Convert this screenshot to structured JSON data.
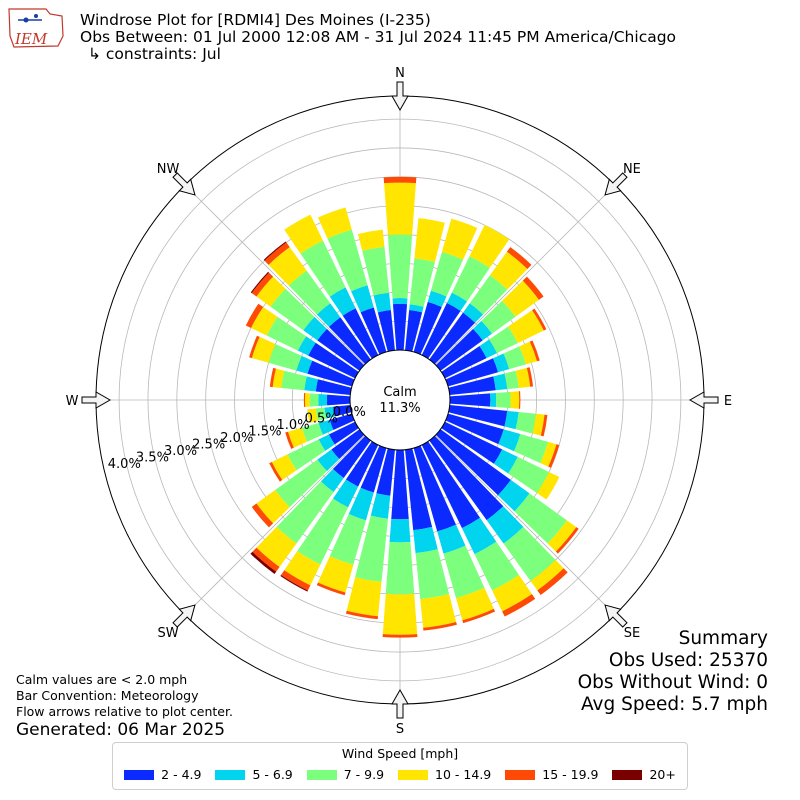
{
  "header": {
    "title": "Windrose Plot for [RDMI4] Des Moines (I-235)",
    "obs_between": "Obs Between: 01 Jul 2000 12:08 AM - 31 Jul 2024 11:45 PM America/Chicago",
    "constraints": "↳ constraints: Jul"
  },
  "logo": {
    "text": "IEM"
  },
  "notes": {
    "calm_def": "Calm values are < 2.0 mph",
    "bar_convention": "Bar Convention: Meteorology",
    "flow_arrows": "Flow arrows relative to plot center.",
    "generated": "Generated: 06 Mar 2025"
  },
  "summary": {
    "heading": "Summary",
    "obs_used": "Obs Used: 25370",
    "obs_without_wind": "Obs Without Wind: 0",
    "avg_speed": "Avg Speed: 5.7 mph"
  },
  "legend": {
    "title": "Wind Speed [mph]",
    "items": [
      {
        "label": "2 - 4.9",
        "color": "#0a2aff"
      },
      {
        "label": "5 - 6.9",
        "color": "#00d4ee"
      },
      {
        "label": "7 - 9.9",
        "color": "#7cff7c"
      },
      {
        "label": "10 - 14.9",
        "color": "#ffe500"
      },
      {
        "label": "15 - 19.9",
        "color": "#ff4a05"
      },
      {
        "label": "20+",
        "color": "#7a0000"
      }
    ]
  },
  "chart_data": {
    "type": "windrose",
    "calm": {
      "label": "Calm",
      "value": "11.3%"
    },
    "compass_labels": [
      "N",
      "NE",
      "E",
      "SE",
      "S",
      "SW",
      "W",
      "NW"
    ],
    "radial_ticks": [
      "0.0%",
      "0.5%",
      "1.0%",
      "1.5%",
      "2.0%",
      "2.5%",
      "3.0%",
      "3.5%",
      "4.0%"
    ],
    "radial_max_pct": 4.4,
    "bin_colors": [
      "#0a2aff",
      "#00d4ee",
      "#7cff7c",
      "#ffe500",
      "#ff4a05",
      "#7a0000"
    ],
    "directions_deg": [
      0,
      10,
      20,
      30,
      40,
      50,
      60,
      70,
      80,
      90,
      100,
      110,
      120,
      130,
      140,
      150,
      160,
      170,
      180,
      190,
      200,
      210,
      220,
      230,
      240,
      250,
      260,
      270,
      280,
      290,
      300,
      310,
      320,
      330,
      340,
      350
    ],
    "cumulative_pct": [
      [
        0.8,
        0.9,
        2.0,
        2.9,
        3.0,
        3.0
      ],
      [
        0.7,
        0.8,
        1.6,
        2.3,
        2.3,
        2.3
      ],
      [
        0.9,
        1.1,
        1.8,
        2.4,
        2.4,
        2.4
      ],
      [
        1.0,
        1.2,
        1.9,
        2.5,
        2.5,
        2.5
      ],
      [
        1.0,
        1.2,
        1.8,
        2.3,
        2.4,
        2.4
      ],
      [
        0.9,
        1.1,
        1.6,
        2.1,
        2.2,
        2.2
      ],
      [
        0.8,
        1.0,
        1.4,
        1.9,
        1.95,
        1.95
      ],
      [
        0.9,
        1.1,
        1.4,
        1.6,
        1.65,
        1.65
      ],
      [
        0.8,
        1.0,
        1.2,
        1.4,
        1.45,
        1.45
      ],
      [
        0.7,
        0.8,
        1.05,
        1.2,
        1.22,
        1.22
      ],
      [
        1.0,
        1.2,
        1.5,
        1.65,
        1.7,
        1.7
      ],
      [
        1.0,
        1.3,
        1.8,
        1.95,
        2.0,
        2.0
      ],
      [
        1.1,
        1.4,
        2.0,
        2.2,
        2.2,
        2.2
      ],
      [
        1.5,
        1.9,
        2.7,
        2.9,
        2.95,
        2.95
      ],
      [
        1.7,
        2.2,
        3.0,
        3.2,
        3.3,
        3.3
      ],
      [
        1.6,
        2.1,
        2.8,
        3.2,
        3.3,
        3.3
      ],
      [
        1.5,
        1.9,
        2.7,
        3.1,
        3.15,
        3.15
      ],
      [
        1.4,
        1.8,
        2.6,
        3.1,
        3.15,
        3.15
      ],
      [
        1.2,
        1.6,
        2.5,
        3.2,
        3.25,
        3.25
      ],
      [
        0.8,
        1.2,
        2.3,
        2.9,
        2.95,
        2.95
      ],
      [
        0.8,
        1.3,
        2.1,
        2.6,
        2.65,
        2.65
      ],
      [
        0.8,
        1.2,
        2.3,
        2.7,
        2.8,
        2.82
      ],
      [
        0.8,
        1.1,
        2.2,
        2.7,
        2.8,
        2.85
      ],
      [
        0.6,
        0.9,
        1.8,
        2.2,
        2.3,
        2.3
      ],
      [
        0.5,
        0.7,
        1.3,
        1.6,
        1.65,
        1.65
      ],
      [
        0.4,
        0.6,
        0.9,
        1.15,
        1.2,
        1.2
      ],
      [
        0.3,
        0.45,
        0.6,
        0.75,
        0.75,
        0.75
      ],
      [
        0.4,
        0.55,
        0.7,
        0.78,
        0.8,
        0.8
      ],
      [
        0.6,
        0.8,
        1.2,
        1.35,
        1.4,
        1.4
      ],
      [
        0.8,
        1.0,
        1.5,
        1.8,
        1.85,
        1.85
      ],
      [
        0.9,
        1.1,
        1.7,
        2.0,
        2.1,
        2.1
      ],
      [
        0.9,
        1.2,
        1.9,
        2.2,
        2.3,
        2.32
      ],
      [
        0.9,
        1.2,
        1.9,
        2.4,
        2.5,
        2.52
      ],
      [
        0.9,
        1.3,
        2.2,
        2.7,
        2.7,
        2.7
      ],
      [
        0.8,
        1.2,
        2.2,
        2.6,
        2.6,
        2.6
      ],
      [
        0.7,
        1.0,
        1.8,
        2.1,
        2.1,
        2.1
      ]
    ]
  }
}
